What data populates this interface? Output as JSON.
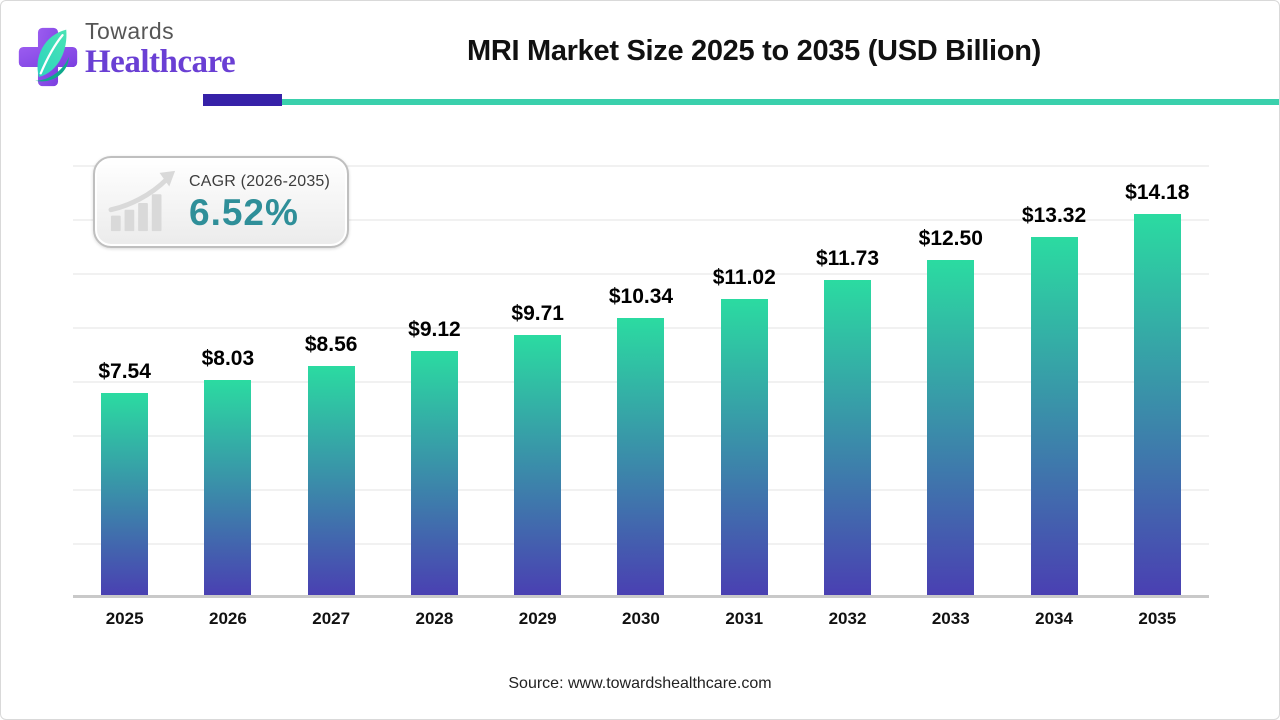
{
  "logo": {
    "brand_top": "Towards",
    "brand_bottom": "Healthcare"
  },
  "header": {
    "title": "MRI Market Size 2025 to 2035 (USD Billion)"
  },
  "cagr_badge": {
    "label": "CAGR (2026-2035)",
    "value": "6.52%"
  },
  "footer": {
    "source": "Source: www.towardshealthcare.com"
  },
  "colors": {
    "accent_teal": "#3ad0ac",
    "accent_purple": "#3621a8",
    "bar_gradient_top": "#2bdba1",
    "bar_gradient_bottom": "#4a3fb2",
    "cagr_value_teal": "#2f8f99",
    "brand_purple": "#6a3fd4",
    "axis_gray": "#c9c9c9",
    "gridline_gray": "#f1f1f1"
  },
  "chart_data": {
    "type": "bar",
    "title": "MRI Market Size 2025 to 2035 (USD Billion)",
    "unit": "USD Billion",
    "categories": [
      "2025",
      "2026",
      "2027",
      "2028",
      "2029",
      "2030",
      "2031",
      "2032",
      "2033",
      "2034",
      "2035"
    ],
    "values": [
      7.54,
      8.03,
      8.56,
      9.12,
      9.71,
      10.34,
      11.02,
      11.73,
      12.5,
      13.32,
      14.18
    ],
    "value_labels": [
      "$7.54",
      "$8.03",
      "$8.56",
      "$9.12",
      "$9.71",
      "$10.34",
      "$11.02",
      "$11.73",
      "$12.50",
      "$13.32",
      "$14.18"
    ],
    "xlabel": "",
    "ylabel": "",
    "ylim": [
      0,
      16
    ],
    "grid_step": 2,
    "grid": "horizontal, faint, no y-axis tick labels",
    "legend_position": "none",
    "bar_color_top": "#2bdba1",
    "bar_color_bottom": "#4a3fb2"
  }
}
